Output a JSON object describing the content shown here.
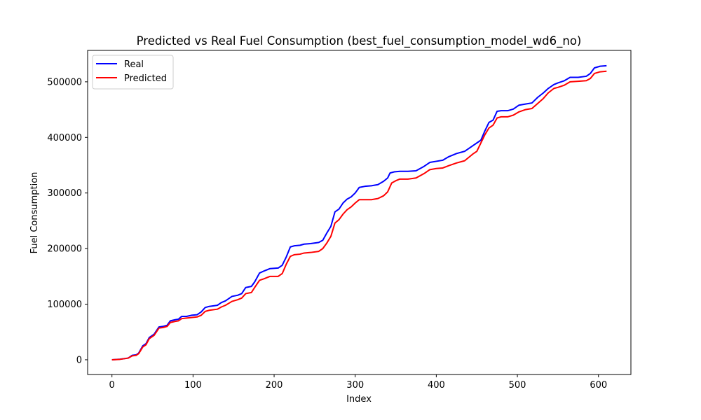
{
  "chart_data": {
    "type": "line",
    "title": "Predicted vs Real Fuel Consumption (best_fuel_consumption_model_wd6_no)",
    "xlabel": "Index",
    "ylabel": "Fuel Consumption",
    "xlim": [
      -30,
      640
    ],
    "ylim": [
      -26500,
      556500
    ],
    "x_ticks": [
      0,
      100,
      200,
      300,
      400,
      500,
      600
    ],
    "y_ticks": [
      0,
      100000,
      200000,
      300000,
      400000,
      500000
    ],
    "grid": false,
    "legend_position": "top-left",
    "series": [
      {
        "name": "Real",
        "color": "#0000ff",
        "points": [
          [
            0,
            0
          ],
          [
            10,
            1000
          ],
          [
            20,
            3000
          ],
          [
            25,
            8000
          ],
          [
            30,
            9000
          ],
          [
            33,
            12000
          ],
          [
            38,
            25000
          ],
          [
            42,
            29000
          ],
          [
            46,
            40000
          ],
          [
            52,
            46000
          ],
          [
            58,
            59000
          ],
          [
            63,
            60000
          ],
          [
            68,
            62000
          ],
          [
            72,
            70000
          ],
          [
            78,
            72000
          ],
          [
            82,
            73000
          ],
          [
            86,
            78000
          ],
          [
            92,
            78000
          ],
          [
            98,
            80000
          ],
          [
            105,
            81000
          ],
          [
            110,
            86000
          ],
          [
            115,
            94000
          ],
          [
            120,
            96000
          ],
          [
            130,
            98000
          ],
          [
            135,
            103000
          ],
          [
            140,
            106000
          ],
          [
            148,
            114000
          ],
          [
            155,
            116000
          ],
          [
            160,
            119000
          ],
          [
            165,
            130000
          ],
          [
            172,
            132000
          ],
          [
            176,
            140000
          ],
          [
            182,
            156000
          ],
          [
            188,
            160000
          ],
          [
            195,
            164000
          ],
          [
            205,
            165000
          ],
          [
            210,
            170000
          ],
          [
            215,
            185000
          ],
          [
            220,
            203000
          ],
          [
            225,
            205000
          ],
          [
            232,
            206000
          ],
          [
            237,
            208000
          ],
          [
            245,
            209000
          ],
          [
            255,
            211000
          ],
          [
            260,
            215000
          ],
          [
            265,
            228000
          ],
          [
            270,
            240000
          ],
          [
            275,
            266000
          ],
          [
            280,
            271000
          ],
          [
            285,
            282000
          ],
          [
            290,
            289000
          ],
          [
            295,
            293000
          ],
          [
            300,
            300000
          ],
          [
            305,
            310000
          ],
          [
            312,
            312000
          ],
          [
            320,
            313000
          ],
          [
            328,
            315000
          ],
          [
            335,
            321000
          ],
          [
            340,
            327000
          ],
          [
            343,
            336000
          ],
          [
            348,
            338000
          ],
          [
            355,
            339000
          ],
          [
            365,
            339000
          ],
          [
            375,
            340000
          ],
          [
            385,
            348000
          ],
          [
            392,
            355000
          ],
          [
            400,
            357000
          ],
          [
            408,
            359000
          ],
          [
            415,
            365000
          ],
          [
            425,
            371000
          ],
          [
            435,
            375000
          ],
          [
            445,
            385000
          ],
          [
            455,
            395000
          ],
          [
            460,
            412000
          ],
          [
            465,
            427000
          ],
          [
            470,
            431000
          ],
          [
            475,
            447000
          ],
          [
            480,
            448000
          ],
          [
            488,
            448000
          ],
          [
            495,
            451000
          ],
          [
            502,
            458000
          ],
          [
            510,
            460000
          ],
          [
            518,
            462000
          ],
          [
            525,
            472000
          ],
          [
            532,
            480000
          ],
          [
            538,
            488000
          ],
          [
            545,
            495000
          ],
          [
            550,
            498000
          ],
          [
            558,
            502000
          ],
          [
            565,
            508000
          ],
          [
            575,
            508000
          ],
          [
            585,
            510000
          ],
          [
            590,
            515000
          ],
          [
            595,
            525000
          ],
          [
            602,
            528000
          ],
          [
            610,
            529000
          ]
        ]
      },
      {
        "name": "Predicted",
        "color": "#ff0000",
        "points": [
          [
            0,
            0
          ],
          [
            10,
            800
          ],
          [
            20,
            3000
          ],
          [
            25,
            7000
          ],
          [
            30,
            8000
          ],
          [
            33,
            11000
          ],
          [
            38,
            23000
          ],
          [
            42,
            27000
          ],
          [
            46,
            38000
          ],
          [
            52,
            44000
          ],
          [
            58,
            57000
          ],
          [
            63,
            58000
          ],
          [
            68,
            60000
          ],
          [
            72,
            67000
          ],
          [
            78,
            69000
          ],
          [
            82,
            70000
          ],
          [
            86,
            74000
          ],
          [
            92,
            75000
          ],
          [
            98,
            76000
          ],
          [
            105,
            77000
          ],
          [
            110,
            80000
          ],
          [
            115,
            87000
          ],
          [
            120,
            89000
          ],
          [
            130,
            91000
          ],
          [
            135,
            95000
          ],
          [
            140,
            98000
          ],
          [
            148,
            105000
          ],
          [
            155,
            108000
          ],
          [
            160,
            111000
          ],
          [
            165,
            119000
          ],
          [
            172,
            121000
          ],
          [
            176,
            130000
          ],
          [
            182,
            143000
          ],
          [
            188,
            146000
          ],
          [
            195,
            150000
          ],
          [
            205,
            150000
          ],
          [
            210,
            155000
          ],
          [
            215,
            172000
          ],
          [
            220,
            186000
          ],
          [
            225,
            189000
          ],
          [
            232,
            190000
          ],
          [
            237,
            192000
          ],
          [
            245,
            193000
          ],
          [
            255,
            195000
          ],
          [
            260,
            200000
          ],
          [
            265,
            210000
          ],
          [
            270,
            222000
          ],
          [
            275,
            246000
          ],
          [
            280,
            252000
          ],
          [
            285,
            262000
          ],
          [
            290,
            270000
          ],
          [
            295,
            275000
          ],
          [
            300,
            282000
          ],
          [
            305,
            288000
          ],
          [
            312,
            288000
          ],
          [
            320,
            288000
          ],
          [
            328,
            290000
          ],
          [
            335,
            295000
          ],
          [
            340,
            302000
          ],
          [
            345,
            318000
          ],
          [
            350,
            322000
          ],
          [
            355,
            325000
          ],
          [
            365,
            325000
          ],
          [
            375,
            327000
          ],
          [
            385,
            335000
          ],
          [
            392,
            342000
          ],
          [
            400,
            344000
          ],
          [
            408,
            345000
          ],
          [
            415,
            349000
          ],
          [
            425,
            354000
          ],
          [
            435,
            358000
          ],
          [
            445,
            370000
          ],
          [
            450,
            375000
          ],
          [
            455,
            390000
          ],
          [
            460,
            405000
          ],
          [
            465,
            417000
          ],
          [
            470,
            422000
          ],
          [
            475,
            435000
          ],
          [
            480,
            437000
          ],
          [
            488,
            437000
          ],
          [
            495,
            440000
          ],
          [
            502,
            446000
          ],
          [
            510,
            450000
          ],
          [
            518,
            452000
          ],
          [
            525,
            461000
          ],
          [
            532,
            470000
          ],
          [
            538,
            480000
          ],
          [
            545,
            488000
          ],
          [
            550,
            490000
          ],
          [
            558,
            494000
          ],
          [
            565,
            500000
          ],
          [
            575,
            501000
          ],
          [
            585,
            502000
          ],
          [
            590,
            506000
          ],
          [
            595,
            515000
          ],
          [
            602,
            518000
          ],
          [
            610,
            519000
          ]
        ]
      }
    ]
  }
}
